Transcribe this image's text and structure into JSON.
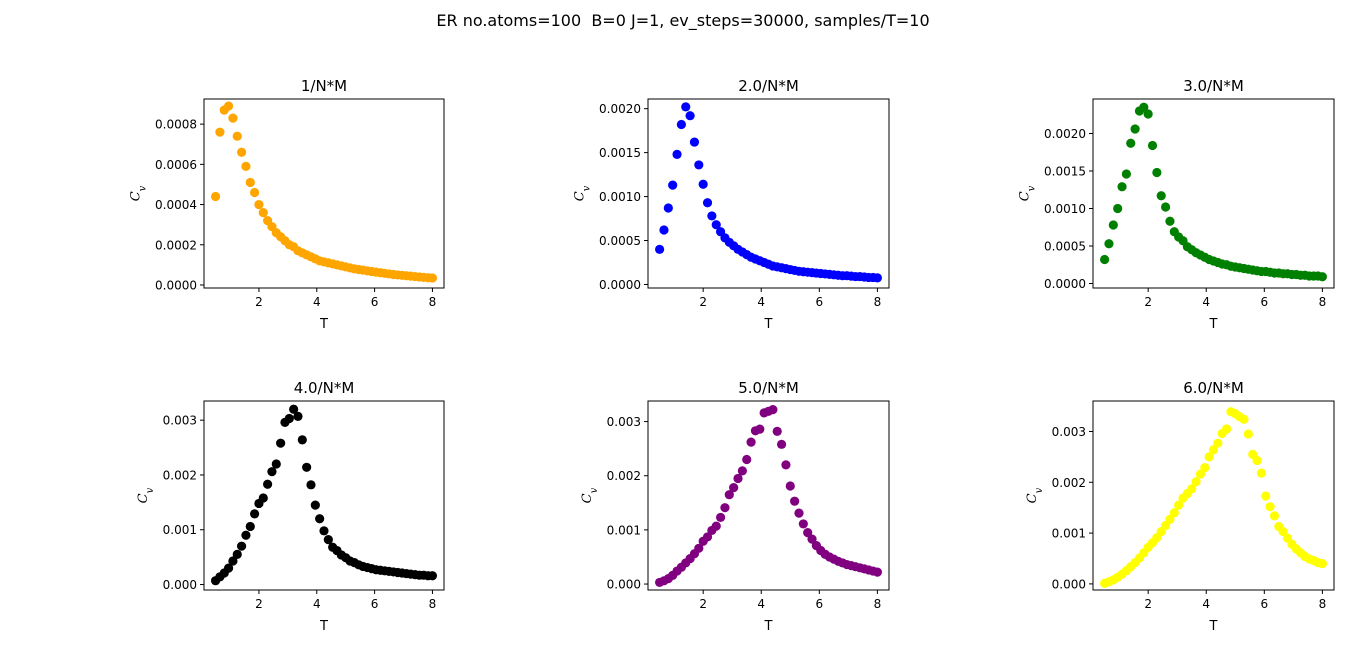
{
  "figure": {
    "suptitle": "ER no.atoms=100  B=0 J=1, ev_steps=30000, samples/T=10"
  },
  "chart_data": [
    {
      "type": "scatter",
      "title": "1/N*M",
      "xlabel": "T",
      "ylabel": "C_v",
      "color": "#FFA500",
      "xlim": [
        0.1,
        8.4
      ],
      "ylim": [
        -1.5e-05,
        0.000925
      ],
      "xticks": [
        2,
        4,
        6,
        8
      ],
      "xtick_labels": [
        "2",
        "4",
        "6",
        "8"
      ],
      "yticks": [
        0,
        0.0002,
        0.0004,
        0.0006,
        0.0008
      ],
      "ytick_labels": [
        "0.0000",
        "0.0002",
        "0.0004",
        "0.0006",
        "0.0008"
      ],
      "x": [
        0.5,
        0.65,
        0.8,
        0.95,
        1.1,
        1.25,
        1.4,
        1.55,
        1.7,
        1.85,
        2.0,
        2.15,
        2.3,
        2.45,
        2.6,
        2.75,
        2.9,
        3.05,
        3.2,
        3.35,
        3.5,
        3.65,
        3.8,
        3.95,
        4.1,
        4.25,
        4.4,
        4.55,
        4.7,
        4.85,
        5.0,
        5.15,
        5.3,
        5.45,
        5.6,
        5.75,
        5.9,
        6.05,
        6.2,
        6.35,
        6.5,
        6.65,
        6.8,
        6.95,
        7.1,
        7.25,
        7.4,
        7.55,
        7.7,
        7.85,
        8.0
      ],
      "y": [
        0.00044,
        0.00076,
        0.00087,
        0.00089,
        0.00083,
        0.00074,
        0.00066,
        0.00059,
        0.00051,
        0.00046,
        0.0004,
        0.00036,
        0.00032,
        0.00029,
        0.00026,
        0.00024,
        0.00022,
        0.0002,
        0.00019,
        0.00017,
        0.00016,
        0.00015,
        0.00014,
        0.00013,
        0.00012,
        0.000115,
        0.00011,
        0.000105,
        0.0001,
        9.5e-05,
        9e-05,
        8.5e-05,
        8e-05,
        7.7e-05,
        7.4e-05,
        7e-05,
        6.7e-05,
        6.4e-05,
        6.1e-05,
        5.8e-05,
        5.5e-05,
        5.2e-05,
        5e-05,
        4.8e-05,
        4.6e-05,
        4.4e-05,
        4.2e-05,
        4e-05,
        3.8e-05,
        3.6e-05,
        3.5e-05
      ]
    },
    {
      "type": "scatter",
      "title": "2.0/N*M",
      "xlabel": "T",
      "ylabel": "C_v",
      "color": "#0000FF",
      "xlim": [
        0.1,
        8.4
      ],
      "ylim": [
        -4e-05,
        0.00211
      ],
      "xticks": [
        2,
        4,
        6,
        8
      ],
      "xtick_labels": [
        "2",
        "4",
        "6",
        "8"
      ],
      "yticks": [
        0,
        0.0005,
        0.001,
        0.0015,
        0.002
      ],
      "ytick_labels": [
        "0.0000",
        "0.0005",
        "0.0010",
        "0.0015",
        "0.0020"
      ],
      "x": [
        0.5,
        0.65,
        0.8,
        0.95,
        1.1,
        1.25,
        1.4,
        1.55,
        1.7,
        1.85,
        2.0,
        2.15,
        2.3,
        2.45,
        2.6,
        2.75,
        2.9,
        3.05,
        3.2,
        3.35,
        3.5,
        3.65,
        3.8,
        3.95,
        4.1,
        4.25,
        4.4,
        4.55,
        4.7,
        4.85,
        5.0,
        5.15,
        5.3,
        5.45,
        5.6,
        5.75,
        5.9,
        6.05,
        6.2,
        6.35,
        6.5,
        6.65,
        6.8,
        6.95,
        7.1,
        7.25,
        7.4,
        7.55,
        7.7,
        7.85,
        8.0
      ],
      "y": [
        0.0004,
        0.00062,
        0.00087,
        0.00113,
        0.00148,
        0.00182,
        0.00202,
        0.00192,
        0.00162,
        0.00136,
        0.00114,
        0.00093,
        0.00078,
        0.00068,
        0.0006,
        0.00053,
        0.00048,
        0.00044,
        0.0004,
        0.00037,
        0.00034,
        0.00031,
        0.00029,
        0.00027,
        0.00025,
        0.00023,
        0.00021,
        0.0002,
        0.00019,
        0.00018,
        0.00017,
        0.00016,
        0.00015,
        0.000145,
        0.00014,
        0.000135,
        0.00013,
        0.000125,
        0.00012,
        0.000115,
        0.00011,
        0.000105,
        0.0001,
        0.0001,
        9.5e-05,
        9e-05,
        9e-05,
        8.5e-05,
        8e-05,
        8e-05,
        7.5e-05
      ]
    },
    {
      "type": "scatter",
      "title": "3.0/N*M",
      "xlabel": "T",
      "ylabel": "C_v",
      "color": "#008000",
      "xlim": [
        0.1,
        8.4
      ],
      "ylim": [
        -6e-05,
        0.00246
      ],
      "xticks": [
        2,
        4,
        6,
        8
      ],
      "xtick_labels": [
        "2",
        "4",
        "6",
        "8"
      ],
      "yticks": [
        0,
        0.0005,
        0.001,
        0.0015,
        0.002
      ],
      "ytick_labels": [
        "0.0000",
        "0.0005",
        "0.0010",
        "0.0015",
        "0.0020"
      ],
      "x": [
        0.5,
        0.65,
        0.8,
        0.95,
        1.1,
        1.25,
        1.4,
        1.55,
        1.7,
        1.85,
        2.0,
        2.15,
        2.3,
        2.45,
        2.6,
        2.75,
        2.9,
        3.05,
        3.2,
        3.35,
        3.5,
        3.65,
        3.8,
        3.95,
        4.1,
        4.25,
        4.4,
        4.55,
        4.7,
        4.85,
        5.0,
        5.15,
        5.3,
        5.45,
        5.6,
        5.75,
        5.9,
        6.05,
        6.2,
        6.35,
        6.5,
        6.65,
        6.8,
        6.95,
        7.1,
        7.25,
        7.4,
        7.55,
        7.7,
        7.85,
        8.0
      ],
      "y": [
        0.00032,
        0.00053,
        0.00078,
        0.001,
        0.00129,
        0.00146,
        0.00187,
        0.00206,
        0.0023,
        0.00235,
        0.00226,
        0.00184,
        0.00148,
        0.00117,
        0.00102,
        0.00083,
        0.00069,
        0.00062,
        0.00057,
        0.00049,
        0.00045,
        0.00041,
        0.00038,
        0.00035,
        0.00032,
        0.0003,
        0.00028,
        0.00026,
        0.00025,
        0.00023,
        0.00022,
        0.00021,
        0.0002,
        0.00019,
        0.00018,
        0.00017,
        0.00016,
        0.00016,
        0.00015,
        0.00014,
        0.00014,
        0.00013,
        0.00013,
        0.00012,
        0.00012,
        0.00011,
        0.00011,
        0.0001,
        0.0001,
        0.0001,
        9e-05
      ]
    },
    {
      "type": "scatter",
      "title": "4.0/N*M",
      "xlabel": "T",
      "ylabel": "C_v",
      "color": "#000000",
      "xlim": [
        0.1,
        8.4
      ],
      "ylim": [
        -0.0001,
        0.00335
      ],
      "xticks": [
        2,
        4,
        6,
        8
      ],
      "xtick_labels": [
        "2",
        "4",
        "6",
        "8"
      ],
      "yticks": [
        0,
        0.001,
        0.002,
        0.003
      ],
      "ytick_labels": [
        "0.000",
        "0.001",
        "0.002",
        "0.003"
      ],
      "x": [
        0.5,
        0.65,
        0.8,
        0.95,
        1.1,
        1.25,
        1.4,
        1.55,
        1.7,
        1.85,
        2.0,
        2.15,
        2.3,
        2.45,
        2.6,
        2.75,
        2.9,
        3.05,
        3.2,
        3.35,
        3.5,
        3.65,
        3.8,
        3.95,
        4.1,
        4.25,
        4.4,
        4.55,
        4.7,
        4.85,
        5.0,
        5.15,
        5.3,
        5.45,
        5.6,
        5.75,
        5.9,
        6.05,
        6.2,
        6.35,
        6.5,
        6.65,
        6.8,
        6.95,
        7.1,
        7.25,
        7.4,
        7.55,
        7.7,
        7.85,
        8.0
      ],
      "y": [
        7e-05,
        0.00014,
        0.00021,
        0.0003,
        0.00043,
        0.00055,
        0.0007,
        0.0009,
        0.00106,
        0.00129,
        0.00148,
        0.00158,
        0.00183,
        0.00206,
        0.0022,
        0.00258,
        0.00296,
        0.00303,
        0.0032,
        0.00307,
        0.00264,
        0.00214,
        0.00182,
        0.00145,
        0.0012,
        0.00098,
        0.00082,
        0.00068,
        0.00062,
        0.00054,
        0.00049,
        0.00043,
        0.0004,
        0.00036,
        0.00033,
        0.00031,
        0.00029,
        0.00027,
        0.00026,
        0.00025,
        0.00024,
        0.00023,
        0.00022,
        0.00021,
        0.0002,
        0.00019,
        0.00018,
        0.00017,
        0.00017,
        0.00016,
        0.00016
      ]
    },
    {
      "type": "scatter",
      "title": "5.0/N*M",
      "xlabel": "T",
      "ylabel": "C_v",
      "color": "#800080",
      "xlim": [
        0.1,
        8.4
      ],
      "ylim": [
        -0.00011,
        0.00338
      ],
      "xticks": [
        2,
        4,
        6,
        8
      ],
      "xtick_labels": [
        "2",
        "4",
        "6",
        "8"
      ],
      "yticks": [
        0,
        0.001,
        0.002,
        0.003
      ],
      "ytick_labels": [
        "0.000",
        "0.001",
        "0.002",
        "0.003"
      ],
      "x": [
        0.5,
        0.65,
        0.8,
        0.95,
        1.1,
        1.25,
        1.4,
        1.55,
        1.7,
        1.85,
        2.0,
        2.15,
        2.3,
        2.45,
        2.6,
        2.75,
        2.9,
        3.05,
        3.2,
        3.35,
        3.5,
        3.65,
        3.8,
        3.95,
        4.1,
        4.25,
        4.4,
        4.55,
        4.7,
        4.85,
        5.0,
        5.15,
        5.3,
        5.45,
        5.6,
        5.75,
        5.9,
        6.05,
        6.2,
        6.35,
        6.5,
        6.65,
        6.8,
        6.95,
        7.1,
        7.25,
        7.4,
        7.55,
        7.7,
        7.85,
        8.0
      ],
      "y": [
        3e-05,
        6e-05,
        0.0001,
        0.00016,
        0.00024,
        0.00031,
        0.00039,
        0.00047,
        0.00056,
        0.00066,
        0.00079,
        0.00087,
        0.00099,
        0.00107,
        0.00123,
        0.00141,
        0.00165,
        0.00178,
        0.00195,
        0.00209,
        0.0023,
        0.00262,
        0.00283,
        0.00286,
        0.00316,
        0.00319,
        0.00322,
        0.00282,
        0.00258,
        0.0022,
        0.00181,
        0.00153,
        0.00131,
        0.00111,
        0.00095,
        0.00083,
        0.00071,
        0.00062,
        0.00055,
        0.0005,
        0.00046,
        0.00042,
        0.00039,
        0.00036,
        0.00034,
        0.00032,
        0.0003,
        0.00028,
        0.00026,
        0.00024,
        0.00022
      ]
    },
    {
      "type": "scatter",
      "title": "6.0/N*M",
      "xlabel": "T",
      "ylabel": "C_v",
      "color": "#FFFF00",
      "xlim": [
        0.1,
        8.4
      ],
      "ylim": [
        -0.00012,
        0.0036
      ],
      "xticks": [
        2,
        4,
        6,
        8
      ],
      "xtick_labels": [
        "2",
        "4",
        "6",
        "8"
      ],
      "yticks": [
        0,
        0.001,
        0.002,
        0.003
      ],
      "ytick_labels": [
        "0.000",
        "0.001",
        "0.002",
        "0.003"
      ],
      "x": [
        0.5,
        0.65,
        0.8,
        0.95,
        1.1,
        1.25,
        1.4,
        1.55,
        1.7,
        1.85,
        2.0,
        2.15,
        2.3,
        2.45,
        2.6,
        2.75,
        2.9,
        3.05,
        3.2,
        3.35,
        3.5,
        3.65,
        3.8,
        3.95,
        4.1,
        4.25,
        4.4,
        4.55,
        4.7,
        4.85,
        5.0,
        5.15,
        5.3,
        5.45,
        5.6,
        5.75,
        5.9,
        6.05,
        6.2,
        6.35,
        6.5,
        6.65,
        6.8,
        6.95,
        7.1,
        7.25,
        7.4,
        7.55,
        7.7,
        7.85,
        8.0
      ],
      "y": [
        1e-05,
        4e-05,
        8e-05,
        0.00013,
        0.00019,
        0.00026,
        0.00034,
        0.00042,
        0.00051,
        0.00061,
        0.00072,
        0.00081,
        0.00091,
        0.00103,
        0.00115,
        0.00127,
        0.0014,
        0.00155,
        0.00169,
        0.00178,
        0.00187,
        0.00201,
        0.00216,
        0.00229,
        0.0025,
        0.00264,
        0.00277,
        0.00296,
        0.00305,
        0.00339,
        0.00335,
        0.00329,
        0.00324,
        0.00295,
        0.00255,
        0.00243,
        0.00218,
        0.00173,
        0.00152,
        0.00134,
        0.00113,
        0.00103,
        0.0009,
        0.00078,
        0.00069,
        0.00061,
        0.00054,
        0.00049,
        0.00046,
        0.00042,
        0.0004
      ]
    }
  ]
}
